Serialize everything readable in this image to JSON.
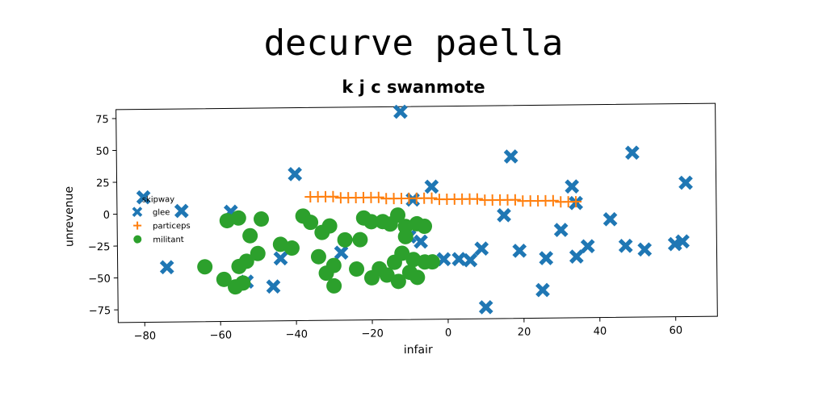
{
  "title": "decurve paella",
  "subtitle": "k j c swanmote",
  "colors": {
    "glee": "#1f77b4",
    "particeps": "#ff7f0e",
    "militant": "#2ca02c"
  },
  "chart_data": {
    "type": "scatter",
    "xlabel": "infair",
    "ylabel": "unrevenue",
    "xlim": [
      -87,
      71
    ],
    "ylim": [
      -85,
      82
    ],
    "xticks": [
      -80,
      -60,
      -40,
      -20,
      0,
      20,
      40,
      60
    ],
    "yticks": [
      75,
      50,
      25,
      0,
      -25,
      -50,
      -75
    ],
    "grid": false,
    "legend": {
      "title": "skipway",
      "placement": "center-left"
    },
    "series": [
      {
        "name": "glee",
        "marker": "X",
        "points": [
          [
            -12,
            78
          ],
          [
            17,
            42
          ],
          [
            49,
            44
          ],
          [
            63,
            20
          ],
          [
            -40,
            30
          ],
          [
            -4,
            19
          ],
          [
            33,
            18
          ],
          [
            34,
            5
          ],
          [
            -9,
            9
          ],
          [
            -80,
            13
          ],
          [
            -70,
            2
          ],
          [
            -57,
            1
          ],
          [
            -74,
            -42
          ],
          [
            -44,
            -36
          ],
          [
            -28,
            -32
          ],
          [
            -53,
            -54
          ],
          [
            -46,
            -58
          ],
          [
            -10,
            -20
          ],
          [
            -7,
            -24
          ],
          [
            -1,
            -38
          ],
          [
            3,
            -38
          ],
          [
            6,
            -39
          ],
          [
            9,
            -30
          ],
          [
            15,
            -4
          ],
          [
            19,
            -32
          ],
          [
            26,
            -38
          ],
          [
            30,
            -16
          ],
          [
            34,
            -37
          ],
          [
            37,
            -29
          ],
          [
            43,
            -8
          ],
          [
            47,
            -29
          ],
          [
            52,
            -32
          ],
          [
            60,
            -28
          ],
          [
            62,
            -26
          ],
          [
            25,
            -63
          ],
          [
            10,
            -76
          ]
        ]
      },
      {
        "name": "particeps",
        "marker": "+",
        "points": [
          [
            -36,
            12
          ],
          [
            -34,
            12
          ],
          [
            -32,
            12
          ],
          [
            -30,
            12
          ],
          [
            -28,
            11
          ],
          [
            -26,
            11
          ],
          [
            -24,
            11
          ],
          [
            -22,
            11
          ],
          [
            -20,
            11
          ],
          [
            -18,
            11
          ],
          [
            -16,
            10
          ],
          [
            -14,
            10
          ],
          [
            -12,
            10
          ],
          [
            -10,
            10
          ],
          [
            -8,
            10
          ],
          [
            -6,
            10
          ],
          [
            -4,
            10
          ],
          [
            -2,
            9
          ],
          [
            0,
            9
          ],
          [
            2,
            9
          ],
          [
            4,
            9
          ],
          [
            6,
            9
          ],
          [
            8,
            9
          ],
          [
            10,
            8
          ],
          [
            12,
            8
          ],
          [
            14,
            8
          ],
          [
            16,
            8
          ],
          [
            18,
            8
          ],
          [
            20,
            7
          ],
          [
            22,
            7
          ],
          [
            24,
            7
          ],
          [
            26,
            7
          ],
          [
            28,
            7
          ],
          [
            30,
            6
          ],
          [
            32,
            6
          ],
          [
            34,
            6
          ]
        ]
      },
      {
        "name": "militant",
        "marker": "o",
        "points": [
          [
            -64,
            -42
          ],
          [
            -59,
            -52
          ],
          [
            -56,
            -58
          ],
          [
            -54,
            -55
          ],
          [
            -53,
            -38
          ],
          [
            -55,
            -42
          ],
          [
            -52,
            -18
          ],
          [
            -50,
            -32
          ],
          [
            -49,
            -5
          ],
          [
            -55,
            -4
          ],
          [
            -58,
            -6
          ],
          [
            -41,
            -28
          ],
          [
            -44,
            -25
          ],
          [
            -38,
            -3
          ],
          [
            -36,
            -8
          ],
          [
            -33,
            -16
          ],
          [
            -31,
            -11
          ],
          [
            -34,
            -35
          ],
          [
            -30,
            -42
          ],
          [
            -32,
            -48
          ],
          [
            -30,
            -58
          ],
          [
            -27,
            -22
          ],
          [
            -23,
            -22
          ],
          [
            -22,
            -5
          ],
          [
            -20,
            -8
          ],
          [
            -17,
            -8
          ],
          [
            -15,
            -10
          ],
          [
            -13,
            -3
          ],
          [
            -11,
            -12
          ],
          [
            -8,
            -10
          ],
          [
            -6,
            -12
          ],
          [
            -11,
            -20
          ],
          [
            -12,
            -33
          ],
          [
            -18,
            -45
          ],
          [
            -20,
            -52
          ],
          [
            -16,
            -50
          ],
          [
            -13,
            -55
          ],
          [
            -10,
            -48
          ],
          [
            -8,
            -52
          ],
          [
            -6,
            -40
          ],
          [
            -9,
            -38
          ],
          [
            -4,
            -40
          ],
          [
            -14,
            -40
          ],
          [
            -24,
            -45
          ]
        ]
      }
    ]
  }
}
